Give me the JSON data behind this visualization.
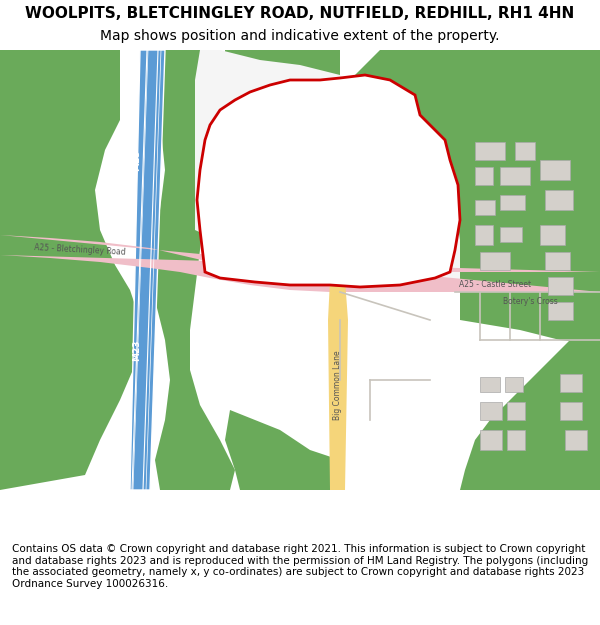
{
  "title": "WOOLPITS, BLETCHINGLEY ROAD, NUTFIELD, REDHILL, RH1 4HN",
  "subtitle": "Map shows position and indicative extent of the property.",
  "footer": "Contains OS data © Crown copyright and database right 2021. This information is subject to Crown copyright and database rights 2023 and is reproduced with the permission of HM Land Registry. The polygons (including the associated geometry, namely x, y co-ordinates) are subject to Crown copyright and database rights 2023 Ordnance Survey 100026316.",
  "bg_color": "#ffffff",
  "map_bg": "#f2efe9",
  "green_color": "#6aaa5a",
  "road_pink": "#f0bec8",
  "road_yellow": "#f5d57a",
  "motorway_blue": "#5b9bd5",
  "motorway_white": "#ffffff",
  "plot_red": "#cc0000",
  "plot_fill": "#ffffff",
  "building_gray": "#d4d0cb",
  "map_xlim": [
    0,
    600
  ],
  "map_ylim": [
    0,
    490
  ],
  "title_fontsize": 11,
  "subtitle_fontsize": 10,
  "footer_fontsize": 7.5
}
